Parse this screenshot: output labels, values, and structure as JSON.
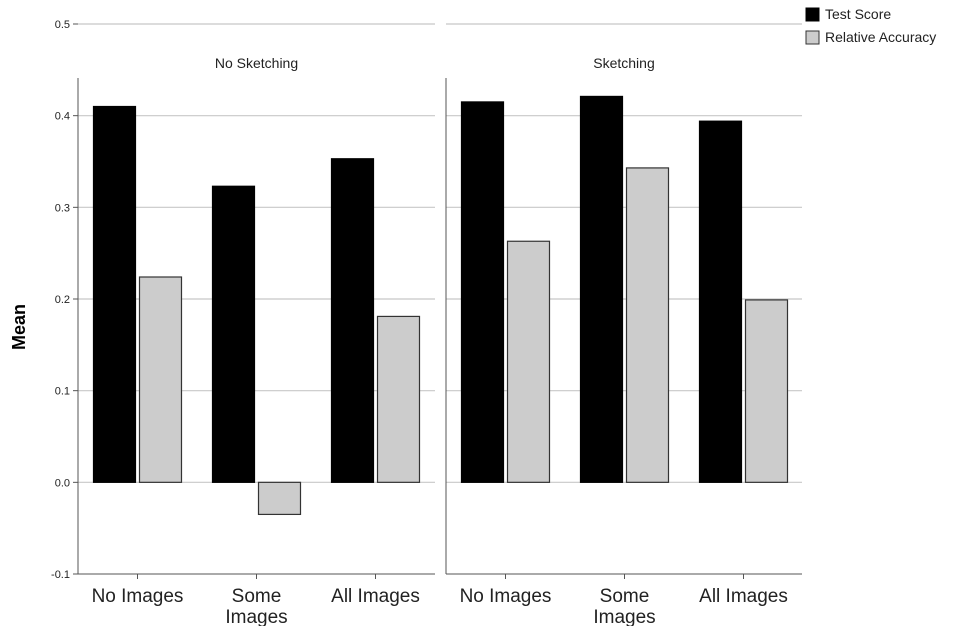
{
  "chart_data": {
    "type": "bar",
    "ylabel": "Mean",
    "xlabel": "",
    "ylim": [
      -0.1,
      0.5
    ],
    "yticks": [
      "-0.1",
      "0.0",
      "0.1",
      "0.2",
      "0.3",
      "0.4",
      "0.5"
    ],
    "grid": true,
    "legend_position": "top-right",
    "series": [
      {
        "name": "Test Score",
        "color": "#000000"
      },
      {
        "name": "Relative Accuracy",
        "color": "#cccccc"
      }
    ],
    "panels": [
      {
        "title": "No Sketching",
        "categories": [
          {
            "label": [
              "No Images"
            ],
            "values": [
              0.41,
              0.224
            ]
          },
          {
            "label": [
              "Some",
              "Images"
            ],
            "values": [
              0.323,
              -0.035
            ]
          },
          {
            "label": [
              "All Images"
            ],
            "values": [
              0.353,
              0.181
            ]
          }
        ]
      },
      {
        "title": "Sketching",
        "categories": [
          {
            "label": [
              "No Images"
            ],
            "values": [
              0.415,
              0.263
            ]
          },
          {
            "label": [
              "Some",
              "Images"
            ],
            "values": [
              0.421,
              0.343
            ]
          },
          {
            "label": [
              "All Images"
            ],
            "values": [
              0.394,
              0.199
            ]
          }
        ]
      }
    ]
  }
}
